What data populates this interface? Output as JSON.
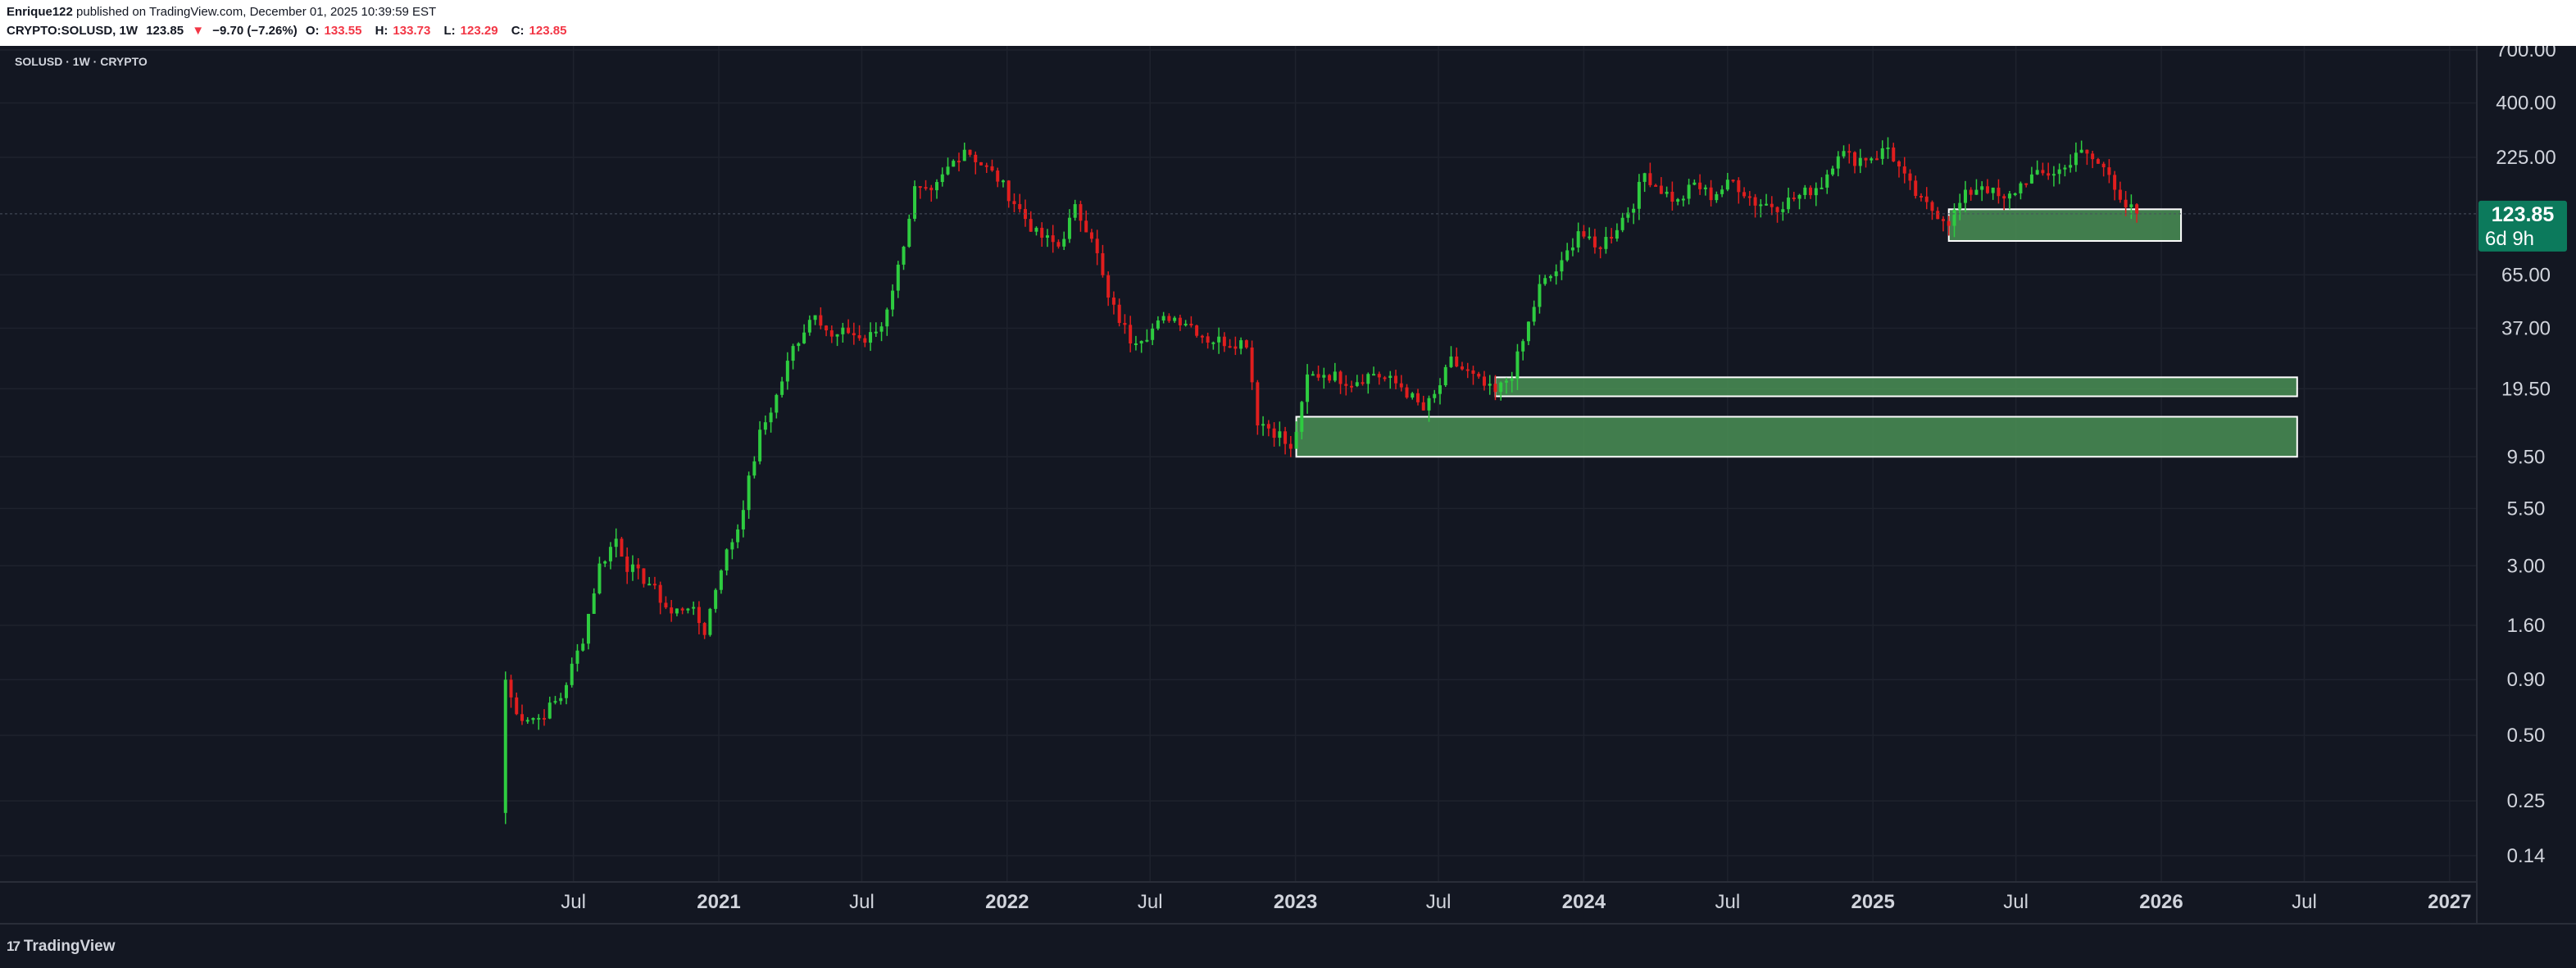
{
  "header": {
    "author": "Enrique122",
    "published_text": "published on TradingView.com, December 01, 2025 10:39:59 EST",
    "symbol": "CRYPTO:SOLUSD, 1W",
    "last_price": "123.85",
    "change_arrow": "▼",
    "change_text": "−9.70 (−7.26%)",
    "o_label": "O:",
    "o_value": "133.55",
    "h_label": "H:",
    "h_value": "133.73",
    "l_label": "L:",
    "l_value": "123.29",
    "c_label": "C:",
    "c_value": "123.85"
  },
  "chart_data": {
    "type": "candlestick",
    "title": "SOLUSD · 1W · CRYPTO",
    "y_scale": "log",
    "y_ticks": [
      {
        "value": 700,
        "label": "700.00"
      },
      {
        "value": 400,
        "label": "400.00"
      },
      {
        "value": 225,
        "label": "225.00"
      },
      {
        "value": 65,
        "label": "65.00"
      },
      {
        "value": 37,
        "label": "37.00"
      },
      {
        "value": 19.5,
        "label": "19.50"
      },
      {
        "value": 9.5,
        "label": "9.50"
      },
      {
        "value": 5.5,
        "label": "5.50"
      },
      {
        "value": 3,
        "label": "3.00"
      },
      {
        "value": 1.6,
        "label": "1.60"
      },
      {
        "value": 0.9,
        "label": "0.90"
      },
      {
        "value": 0.5,
        "label": "0.50"
      },
      {
        "value": 0.25,
        "label": "0.25"
      },
      {
        "value": 0.14,
        "label": "0.14"
      }
    ],
    "x_ticks": [
      {
        "date": "2020-07-01",
        "label": "Jul"
      },
      {
        "date": "2021-01-01",
        "label": "2021"
      },
      {
        "date": "2021-07-01",
        "label": "Jul"
      },
      {
        "date": "2022-01-01",
        "label": "2022"
      },
      {
        "date": "2022-07-01",
        "label": "Jul"
      },
      {
        "date": "2023-01-01",
        "label": "2023"
      },
      {
        "date": "2023-07-01",
        "label": "Jul"
      },
      {
        "date": "2024-01-01",
        "label": "2024"
      },
      {
        "date": "2024-07-01",
        "label": "Jul"
      },
      {
        "date": "2025-01-01",
        "label": "2025"
      },
      {
        "date": "2025-07-01",
        "label": "Jul"
      },
      {
        "date": "2026-01-01",
        "label": "2026"
      },
      {
        "date": "2026-07-01",
        "label": "Jul"
      },
      {
        "date": "2027-01-01",
        "label": "2027"
      }
    ],
    "price_path": [
      [
        "2020-04-06",
        0.9
      ],
      [
        "2020-04-20",
        0.62
      ],
      [
        "2020-05-18",
        0.6
      ],
      [
        "2020-06-15",
        0.75
      ],
      [
        "2020-07-13",
        1.4
      ],
      [
        "2020-08-03",
        3.0
      ],
      [
        "2020-08-24",
        4.0
      ],
      [
        "2020-09-07",
        3.0
      ],
      [
        "2020-10-05",
        2.5
      ],
      [
        "2020-11-02",
        1.8
      ],
      [
        "2020-11-23",
        2.0
      ],
      [
        "2020-12-14",
        1.5
      ],
      [
        "2021-01-04",
        3.0
      ],
      [
        "2021-01-25",
        4.5
      ],
      [
        "2021-02-22",
        12.0
      ],
      [
        "2021-03-15",
        18.0
      ],
      [
        "2021-04-05",
        30.0
      ],
      [
        "2021-05-03",
        45.0
      ],
      [
        "2021-05-24",
        33.0
      ],
      [
        "2021-06-14",
        36.0
      ],
      [
        "2021-07-05",
        32.0
      ],
      [
        "2021-07-26",
        38.0
      ],
      [
        "2021-08-16",
        70.0
      ],
      [
        "2021-09-06",
        160.0
      ],
      [
        "2021-09-27",
        150.0
      ],
      [
        "2021-10-18",
        200.0
      ],
      [
        "2021-11-08",
        250.0
      ],
      [
        "2021-11-29",
        210.0
      ],
      [
        "2021-12-20",
        180.0
      ],
      [
        "2022-01-10",
        140.0
      ],
      [
        "2022-02-07",
        100.0
      ],
      [
        "2022-03-07",
        88.0
      ],
      [
        "2022-03-28",
        130.0
      ],
      [
        "2022-04-18",
        100.0
      ],
      [
        "2022-05-09",
        50.0
      ],
      [
        "2022-06-06",
        33.0
      ],
      [
        "2022-06-27",
        35.0
      ],
      [
        "2022-07-25",
        42.0
      ],
      [
        "2022-08-15",
        40.0
      ],
      [
        "2022-09-12",
        33.0
      ],
      [
        "2022-10-10",
        32.0
      ],
      [
        "2022-10-31",
        32.0
      ],
      [
        "2022-11-14",
        14.0
      ],
      [
        "2022-12-12",
        12.0
      ],
      [
        "2022-12-26",
        10.0
      ],
      [
        "2023-01-09",
        16.0
      ],
      [
        "2023-01-16",
        22.0
      ],
      [
        "2023-02-06",
        23.0
      ],
      [
        "2023-03-13",
        21.0
      ],
      [
        "2023-04-10",
        23.0
      ],
      [
        "2023-05-15",
        20.0
      ],
      [
        "2023-06-12",
        15.5
      ],
      [
        "2023-06-26",
        18.0
      ],
      [
        "2023-07-17",
        26.0
      ],
      [
        "2023-08-07",
        23.0
      ],
      [
        "2023-08-28",
        20.0
      ],
      [
        "2023-09-11",
        18.5
      ],
      [
        "2023-10-02",
        23.0
      ],
      [
        "2023-10-16",
        32.0
      ],
      [
        "2023-11-06",
        57.0
      ],
      [
        "2023-12-04",
        72.0
      ],
      [
        "2023-12-25",
        105.0
      ],
      [
        "2024-01-15",
        85.0
      ],
      [
        "2024-02-05",
        100.0
      ],
      [
        "2024-03-04",
        140.0
      ],
      [
        "2024-03-18",
        190.0
      ],
      [
        "2024-04-08",
        160.0
      ],
      [
        "2024-04-29",
        140.0
      ],
      [
        "2024-05-20",
        170.0
      ],
      [
        "2024-06-10",
        150.0
      ],
      [
        "2024-07-08",
        175.0
      ],
      [
        "2024-08-05",
        140.0
      ],
      [
        "2024-09-02",
        135.0
      ],
      [
        "2024-09-30",
        150.0
      ],
      [
        "2024-10-28",
        170.0
      ],
      [
        "2024-11-18",
        240.0
      ],
      [
        "2024-12-09",
        220.0
      ],
      [
        "2025-01-06",
        230.0
      ],
      [
        "2025-01-20",
        250.0
      ],
      [
        "2025-02-10",
        180.0
      ],
      [
        "2025-03-03",
        140.0
      ],
      [
        "2025-04-07",
        115.0
      ],
      [
        "2025-04-28",
        150.0
      ],
      [
        "2025-05-19",
        170.0
      ],
      [
        "2025-06-16",
        140.0
      ],
      [
        "2025-07-14",
        180.0
      ],
      [
        "2025-08-11",
        190.0
      ],
      [
        "2025-09-01",
        200.0
      ],
      [
        "2025-09-15",
        240.0
      ],
      [
        "2025-10-06",
        220.0
      ],
      [
        "2025-10-27",
        190.0
      ],
      [
        "2025-11-17",
        135.0
      ],
      [
        "2025-12-01",
        123.85
      ]
    ],
    "zones": [
      {
        "start": "2023-01-02",
        "end": "2026-06-22",
        "low": 9.5,
        "high": 14.5
      },
      {
        "start": "2023-09-11",
        "end": "2026-06-22",
        "low": 18.0,
        "high": 22.0
      },
      {
        "start": "2025-04-07",
        "end": "2026-01-26",
        "low": 93.0,
        "high": 130.0
      }
    ],
    "last_price_label": "123.85",
    "countdown_label": "6d 9h",
    "colors": {
      "up": "#2ecc40",
      "down": "#e01e1e",
      "background": "#131722",
      "grid": "#1e222d",
      "zone_fill": "#4a8f55",
      "last_price_bg": "#0c7a5c"
    }
  },
  "footer": {
    "logo_glyph": "17",
    "logo_text": "TradingView"
  }
}
